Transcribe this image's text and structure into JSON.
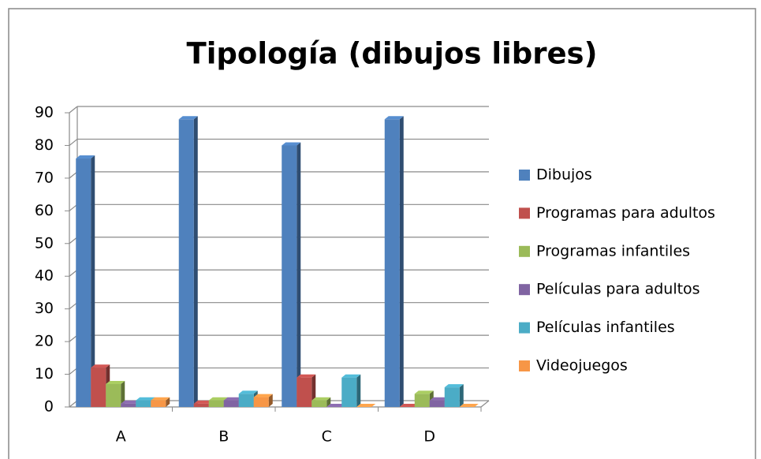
{
  "chart_data": {
    "type": "bar",
    "title": "Tipología (dibujos libres)",
    "categories": [
      "A",
      "B",
      "C",
      "D"
    ],
    "series": [
      {
        "name": "Dibujos",
        "color": "#4F81BD",
        "values": [
          76,
          88,
          80,
          88
        ]
      },
      {
        "name": "Programas para adultos",
        "color": "#C0504D",
        "values": [
          12,
          1,
          9,
          0
        ]
      },
      {
        "name": "Programas infantiles",
        "color": "#9BBB59",
        "values": [
          7,
          2,
          2,
          4
        ]
      },
      {
        "name": "Películas para adultos",
        "color": "#8064A2",
        "values": [
          1,
          2,
          0,
          2
        ]
      },
      {
        "name": "Películas infantiles",
        "color": "#4BACC6",
        "values": [
          2,
          4,
          9,
          6
        ]
      },
      {
        "name": "Videojuegos",
        "color": "#F79646",
        "values": [
          2,
          3,
          0,
          0
        ]
      }
    ],
    "ylim": [
      0,
      90
    ],
    "yticks": [
      0,
      10,
      20,
      30,
      40,
      50,
      60,
      70,
      80,
      90
    ],
    "grid": true,
    "legend": "right"
  }
}
